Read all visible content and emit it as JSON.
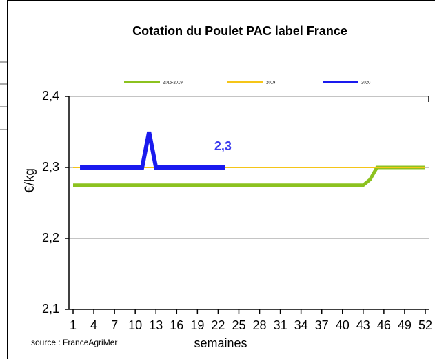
{
  "chart_data": {
    "type": "line",
    "title": "Cotation du Poulet PAC label France",
    "y_label": "€/kg",
    "x_label": "semaines",
    "source": "source : FranceAgriMer",
    "x": [
      1,
      2,
      3,
      4,
      5,
      6,
      7,
      8,
      9,
      10,
      11,
      12,
      13,
      14,
      15,
      16,
      17,
      18,
      19,
      20,
      21,
      22,
      23,
      24,
      25,
      26,
      27,
      28,
      29,
      30,
      31,
      32,
      33,
      34,
      35,
      36,
      37,
      38,
      39,
      40,
      41,
      42,
      43,
      44,
      45,
      46,
      47,
      48,
      49,
      50,
      51,
      52
    ],
    "xlim": [
      0.4,
      52.5
    ],
    "xticks": [
      1,
      4,
      7,
      10,
      13,
      16,
      19,
      22,
      25,
      28,
      31,
      34,
      37,
      40,
      43,
      46,
      49,
      52
    ],
    "ylim": [
      2.1,
      2.4
    ],
    "yticks": [
      {
        "value": 2.1,
        "label": "2,1"
      },
      {
        "value": 2.2,
        "label": "2,2"
      },
      {
        "value": 2.3,
        "label": "2,3"
      },
      {
        "value": 2.4,
        "label": "2,4"
      }
    ],
    "grid": true,
    "legend": "top",
    "series": [
      {
        "name": "2015-2019",
        "color": "#8cc21f",
        "width": 5,
        "values": [
          2.275,
          2.275,
          2.275,
          2.275,
          2.275,
          2.275,
          2.275,
          2.275,
          2.275,
          2.275,
          2.275,
          2.275,
          2.275,
          2.275,
          2.275,
          2.275,
          2.275,
          2.275,
          2.275,
          2.275,
          2.275,
          2.275,
          2.275,
          2.275,
          2.275,
          2.275,
          2.275,
          2.275,
          2.275,
          2.275,
          2.275,
          2.275,
          2.275,
          2.275,
          2.275,
          2.275,
          2.275,
          2.275,
          2.275,
          2.275,
          2.275,
          2.275,
          2.275,
          2.283,
          2.3,
          2.3,
          2.3,
          2.3,
          2.3,
          2.3,
          2.3,
          2.3
        ]
      },
      {
        "name": "2019",
        "color": "#f5c518",
        "width": 2,
        "values": [
          2.3,
          2.3,
          2.3,
          2.3,
          2.3,
          2.3,
          2.3,
          2.3,
          2.3,
          2.3,
          2.3,
          2.3,
          2.3,
          2.3,
          2.3,
          2.3,
          2.3,
          2.3,
          2.3,
          2.3,
          2.3,
          2.3,
          2.3,
          2.3,
          2.3,
          2.3,
          2.3,
          2.3,
          2.3,
          2.3,
          2.3,
          2.3,
          2.3,
          2.3,
          2.3,
          2.3,
          2.3,
          2.3,
          2.3,
          2.3,
          2.3,
          2.3,
          2.3,
          2.3,
          2.3,
          2.3,
          2.3,
          2.3,
          2.3,
          2.3,
          2.3,
          2.3
        ]
      },
      {
        "name": "2020",
        "color": "#1a1aee",
        "width": 6,
        "values": [
          null,
          2.3,
          2.3,
          2.3,
          2.3,
          2.3,
          2.3,
          2.3,
          2.3,
          2.3,
          2.3,
          2.35,
          2.3,
          2.3,
          2.3,
          2.3,
          2.3,
          2.3,
          2.3,
          2.3,
          2.3,
          2.3,
          2.3,
          null,
          null,
          null,
          null,
          null,
          null,
          null,
          null,
          null,
          null,
          null,
          null,
          null,
          null,
          null,
          null,
          null,
          null,
          null,
          null,
          null,
          null,
          null,
          null,
          null,
          null,
          null,
          null,
          null
        ],
        "value_labels": [
          null,
          null,
          null,
          null,
          null,
          null,
          null,
          null,
          null,
          null,
          null,
          null,
          null,
          null,
          null,
          null,
          null,
          null,
          null,
          null,
          null,
          null,
          "2,3",
          null,
          null,
          null,
          null,
          null,
          null,
          null,
          null,
          null,
          null,
          null,
          null,
          null,
          null,
          null,
          null,
          null,
          null,
          null,
          null,
          null,
          null,
          null,
          null,
          null,
          null,
          null,
          null,
          null
        ]
      }
    ]
  }
}
